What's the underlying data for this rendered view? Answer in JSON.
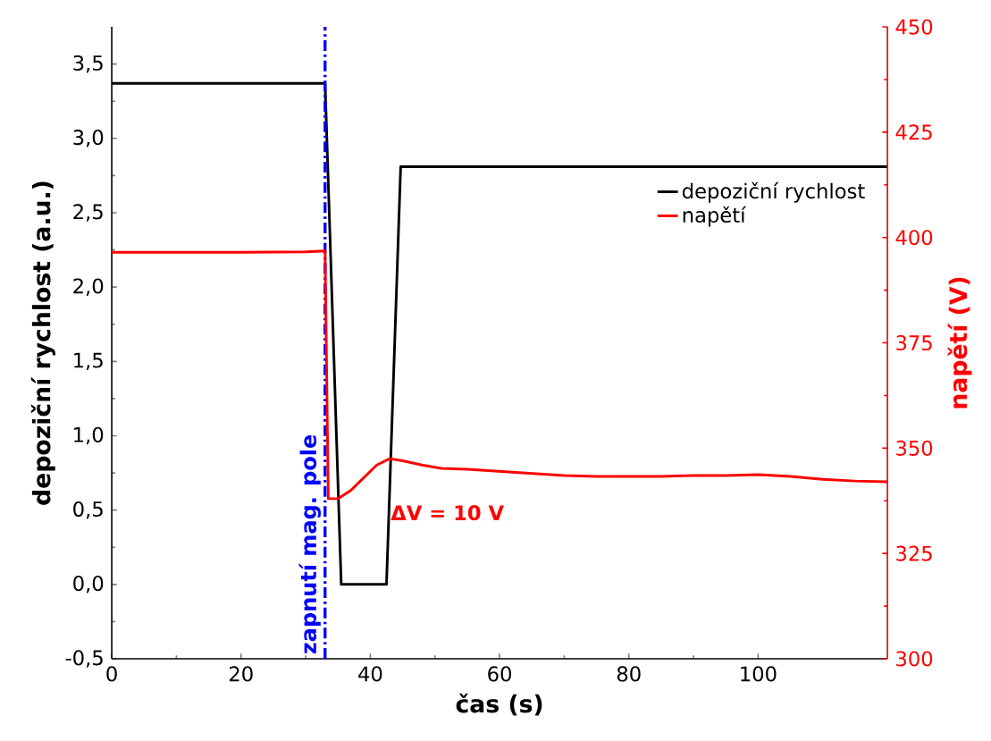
{
  "chart_data": {
    "type": "line",
    "xlabel": "čas (s)",
    "ylabel": "depoziční rychlost (a.u.)",
    "y2label": "napětí (V)",
    "xlim": [
      0,
      120
    ],
    "xticks": [
      0,
      20,
      40,
      60,
      80,
      100
    ],
    "ylim": [
      -0.5,
      3.75
    ],
    "yticks": [
      {
        "value": -0.5,
        "label": "-0,5"
      },
      {
        "value": 0,
        "label": "0,0"
      },
      {
        "value": 0.5,
        "label": "0,5"
      },
      {
        "value": 1,
        "label": "1,0"
      },
      {
        "value": 1.5,
        "label": "1,5"
      },
      {
        "value": 2,
        "label": "2,0"
      },
      {
        "value": 2.5,
        "label": "2,5"
      },
      {
        "value": 3,
        "label": "3,0"
      },
      {
        "value": 3.5,
        "label": "3,5"
      }
    ],
    "y2lim": [
      300,
      450
    ],
    "y2ticks": [
      300,
      325,
      350,
      375,
      400,
      425,
      450
    ],
    "legend": "right",
    "grid": false,
    "marker": "none",
    "line_style": "solid",
    "series": [
      {
        "name": "depoziční rychlost",
        "color": "#000000",
        "x": [
          0,
          33,
          35.5,
          42.5,
          44.7,
          120
        ],
        "values": [
          3.37,
          3.37,
          0,
          0,
          2.81,
          2.81
        ]
      },
      {
        "name": "napětí",
        "color": "#ff0000",
        "axis": "y2",
        "x": [
          0,
          10,
          20,
          30,
          33,
          33.5,
          35,
          37,
          39,
          41,
          43,
          45,
          48,
          51,
          55,
          60,
          65,
          70,
          75,
          80,
          85,
          90,
          95,
          100,
          105,
          110,
          115,
          120
        ],
        "values": [
          396.5,
          396.5,
          396.5,
          396.6,
          396.8,
          338,
          338,
          340,
          343,
          346,
          347.5,
          347,
          346,
          345.2,
          345,
          344.5,
          344,
          343.5,
          343.3,
          343.3,
          343.3,
          343.5,
          343.5,
          343.7,
          343.3,
          342.6,
          342.2,
          342
        ]
      }
    ],
    "ref_lines": [
      {
        "axis": "x",
        "value": 33,
        "label": "zapnutí mag. pole",
        "color": "#0000ff",
        "line_style": "dashed"
      }
    ],
    "annotations": [
      "ΔV = 10 V"
    ]
  }
}
